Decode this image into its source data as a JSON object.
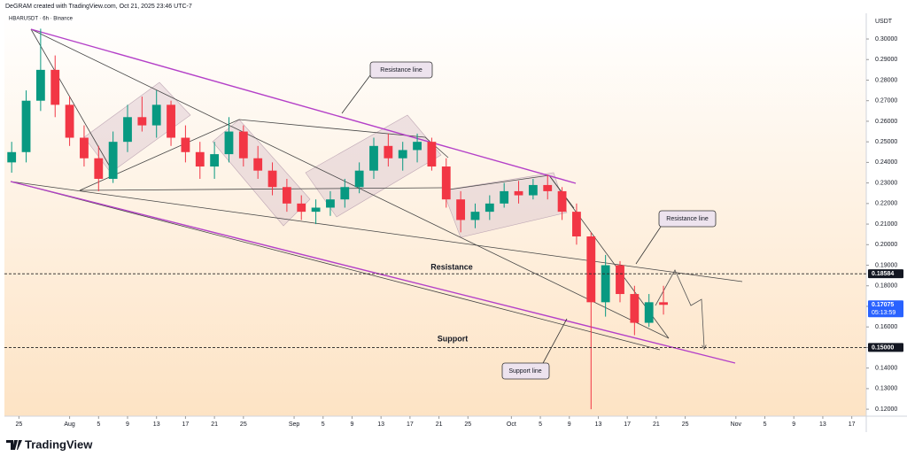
{
  "header": {
    "credit": "DeGRAM created with TradingView.com, Oct 21, 2025 23:46 UTC-7",
    "symbol": "HBARUSDT · 6h · Binance"
  },
  "chart_data": {
    "type": "candlestick",
    "x": [
      "2025-07-23",
      "2025-07-25",
      "2025-07-27",
      "2025-07-29",
      "2025-07-31",
      "2025-08-02",
      "2025-08-04",
      "2025-08-06",
      "2025-08-08",
      "2025-08-10",
      "2025-08-12",
      "2025-08-14",
      "2025-08-16",
      "2025-08-18",
      "2025-08-20",
      "2025-08-22",
      "2025-08-24",
      "2025-08-26",
      "2025-08-28",
      "2025-08-30",
      "2025-09-01",
      "2025-09-03",
      "2025-09-05",
      "2025-09-07",
      "2025-09-09",
      "2025-09-11",
      "2025-09-13",
      "2025-09-15",
      "2025-09-17",
      "2025-09-19",
      "2025-09-21",
      "2025-09-23",
      "2025-09-25",
      "2025-09-27",
      "2025-09-29",
      "2025-10-01",
      "2025-10-03",
      "2025-10-05",
      "2025-10-07",
      "2025-10-09",
      "2025-10-11",
      "2025-10-13",
      "2025-10-15",
      "2025-10-17",
      "2025-10-19",
      "2025-10-21"
    ],
    "open": [
      0.24,
      0.245,
      0.27,
      0.285,
      0.268,
      0.252,
      0.242,
      0.232,
      0.25,
      0.262,
      0.258,
      0.268,
      0.252,
      0.245,
      0.238,
      0.244,
      0.255,
      0.242,
      0.236,
      0.228,
      0.22,
      0.216,
      0.218,
      0.222,
      0.228,
      0.236,
      0.248,
      0.242,
      0.246,
      0.25,
      0.238,
      0.222,
      0.212,
      0.216,
      0.22,
      0.226,
      0.224,
      0.229,
      0.226,
      0.216,
      0.204,
      0.172,
      0.19,
      0.176,
      0.162,
      0.172
    ],
    "high": [
      0.25,
      0.275,
      0.305,
      0.292,
      0.272,
      0.258,
      0.248,
      0.255,
      0.268,
      0.272,
      0.275,
      0.27,
      0.258,
      0.25,
      0.25,
      0.262,
      0.258,
      0.248,
      0.24,
      0.232,
      0.224,
      0.222,
      0.226,
      0.232,
      0.24,
      0.252,
      0.254,
      0.25,
      0.254,
      0.252,
      0.242,
      0.226,
      0.22,
      0.224,
      0.23,
      0.231,
      0.232,
      0.234,
      0.228,
      0.22,
      0.206,
      0.195,
      0.192,
      0.18,
      0.176,
      0.18
    ],
    "low": [
      0.235,
      0.24,
      0.265,
      0.262,
      0.248,
      0.238,
      0.226,
      0.23,
      0.245,
      0.255,
      0.252,
      0.248,
      0.24,
      0.232,
      0.232,
      0.24,
      0.238,
      0.232,
      0.224,
      0.216,
      0.212,
      0.21,
      0.214,
      0.218,
      0.225,
      0.232,
      0.238,
      0.236,
      0.24,
      0.236,
      0.218,
      0.206,
      0.208,
      0.212,
      0.218,
      0.22,
      0.222,
      0.222,
      0.212,
      0.2,
      0.12,
      0.165,
      0.172,
      0.156,
      0.16,
      0.166
    ],
    "close": [
      0.245,
      0.27,
      0.285,
      0.268,
      0.252,
      0.242,
      0.232,
      0.25,
      0.262,
      0.258,
      0.268,
      0.252,
      0.245,
      0.238,
      0.244,
      0.255,
      0.242,
      0.236,
      0.228,
      0.22,
      0.216,
      0.218,
      0.222,
      0.228,
      0.236,
      0.248,
      0.242,
      0.246,
      0.25,
      0.238,
      0.222,
      0.212,
      0.216,
      0.22,
      0.226,
      0.224,
      0.229,
      0.226,
      0.216,
      0.204,
      0.172,
      0.19,
      0.176,
      0.162,
      0.172,
      0.17075
    ],
    "colors": {
      "up": "#089981",
      "down": "#f23645"
    },
    "xlim": [
      "2025-07-23",
      "2025-11-19"
    ],
    "xticks": [
      {
        "value": "2025-07-25",
        "label": "25"
      },
      {
        "value": "2025-08-01",
        "label": "Aug"
      },
      {
        "value": "2025-08-05",
        "label": "5"
      },
      {
        "value": "2025-08-09",
        "label": "9"
      },
      {
        "value": "2025-08-13",
        "label": "13"
      },
      {
        "value": "2025-08-17",
        "label": "17"
      },
      {
        "value": "2025-08-21",
        "label": "21"
      },
      {
        "value": "2025-08-25",
        "label": "25"
      },
      {
        "value": "2025-09-01",
        "label": "Sep"
      },
      {
        "value": "2025-09-05",
        "label": "5"
      },
      {
        "value": "2025-09-09",
        "label": "9"
      },
      {
        "value": "2025-09-13",
        "label": "13"
      },
      {
        "value": "2025-09-17",
        "label": "17"
      },
      {
        "value": "2025-09-21",
        "label": "21"
      },
      {
        "value": "2025-09-25",
        "label": "25"
      },
      {
        "value": "2025-10-01",
        "label": "Oct"
      },
      {
        "value": "2025-10-05",
        "label": "5"
      },
      {
        "value": "2025-10-09",
        "label": "9"
      },
      {
        "value": "2025-10-13",
        "label": "13"
      },
      {
        "value": "2025-10-17",
        "label": "17"
      },
      {
        "value": "2025-10-21",
        "label": "21"
      },
      {
        "value": "2025-10-25",
        "label": "25"
      },
      {
        "value": "2025-11-01",
        "label": "Nov"
      },
      {
        "value": "2025-11-05",
        "label": "5"
      },
      {
        "value": "2025-11-09",
        "label": "9"
      },
      {
        "value": "2025-11-13",
        "label": "13"
      },
      {
        "value": "2025-11-17",
        "label": "17"
      }
    ],
    "ylim": [
      0.1166,
      0.3125
    ],
    "yticks": [
      {
        "value": 0.12,
        "label": "0.12000"
      },
      {
        "value": 0.13,
        "label": "0.13000"
      },
      {
        "value": 0.14,
        "label": "0.14000"
      },
      {
        "value": 0.15,
        "label": "0.15000"
      },
      {
        "value": 0.16,
        "label": "0.16000"
      },
      {
        "value": 0.17,
        "label": "0.17000"
      },
      {
        "value": 0.18,
        "label": "0.18000"
      },
      {
        "value": 0.19,
        "label": "0.19000"
      },
      {
        "value": 0.2,
        "label": "0.20000"
      },
      {
        "value": 0.21,
        "label": "0.21000"
      },
      {
        "value": 0.22,
        "label": "0.22000"
      },
      {
        "value": 0.23,
        "label": "0.23000"
      },
      {
        "value": 0.24,
        "label": "0.24000"
      },
      {
        "value": 0.25,
        "label": "0.25000"
      },
      {
        "value": 0.26,
        "label": "0.26000"
      },
      {
        "value": 0.27,
        "label": "0.27000"
      },
      {
        "value": 0.28,
        "label": "0.28000"
      },
      {
        "value": 0.29,
        "label": "0.29000"
      },
      {
        "value": 0.3,
        "label": "0.30000"
      }
    ],
    "y_axis_label": "USDT",
    "levels": [
      {
        "name": "Resistance",
        "value": 0.18584,
        "label": "0.18584"
      },
      {
        "name": "Support",
        "value": 0.15,
        "label": "0.15000"
      }
    ],
    "last_price": {
      "value": 0.17075,
      "label": "0.17075",
      "countdown": "05:13:59"
    },
    "annotations": [
      "Resistance line",
      "Resistance line",
      "Support line"
    ]
  },
  "footer": {
    "brand": "TradingView"
  }
}
